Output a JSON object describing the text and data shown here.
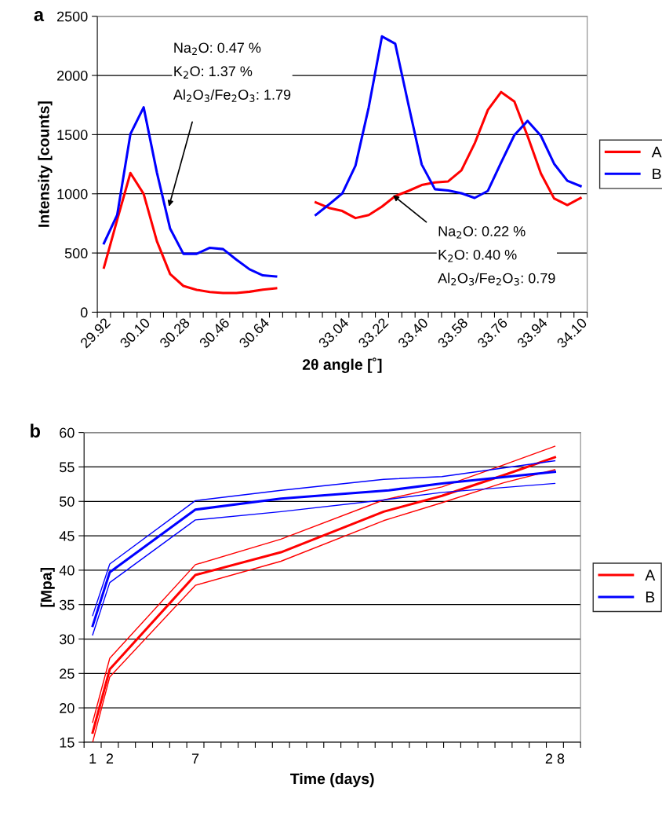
{
  "chart_data": [
    {
      "type": "line",
      "title": "a",
      "xlabel": "2θ angle [˚]",
      "ylabel": "Intensity [counts]",
      "categories": [
        "29.92",
        null,
        null,
        "30.10",
        null,
        null,
        "30.28",
        null,
        null,
        "30.46",
        null,
        null,
        "30.64",
        null,
        null,
        null,
        null,
        null,
        "33.04",
        null,
        null,
        "33.22",
        null,
        null,
        "33.40",
        null,
        null,
        "33.58",
        null,
        null,
        "33.76",
        null,
        null,
        "33.94",
        null,
        null,
        "34.10"
      ],
      "series": [
        {
          "name": "A",
          "color": "#ff0000",
          "values": [
            377,
            780,
            1176,
            999,
            599,
            322,
            222,
            189,
            171,
            162,
            162,
            173,
            191,
            202,
            null,
            null,
            928,
            881,
            855,
            795,
            821,
            892,
            981,
            1025,
            1074,
            1096,
            1105,
            1198,
            1425,
            1709,
            1860,
            1780,
            1487,
            1172,
            961,
            905,
            965
          ]
        },
        {
          "name": "B",
          "color": "#0000ff",
          "values": [
            582,
            821,
            1505,
            1731,
            1180,
            706,
            493,
            493,
            544,
            533,
            444,
            362,
            311,
            302,
            null,
            null,
            821,
            910,
            1003,
            1238,
            1731,
            2330,
            2268,
            1753,
            1248,
            1039,
            1028,
            1005,
            965,
            1025,
            1265,
            1496,
            1616,
            1491,
            1254,
            1110,
            1065
          ]
        }
      ],
      "ylim": [
        0,
        2500
      ],
      "yticks": [
        0,
        500,
        1000,
        1500,
        2000,
        2500
      ],
      "grid": "y",
      "legend": "right",
      "annotations": [
        "Na$_{2}$O: 0.47 %\nK$_{2}$O: 1.37 %\nAl$_{2}$O$_{3}$/Fe$_{2}$O$_{3}$: 1.79",
        "Na$_{2}$O: 0.22 %\nK$_{2}$O: 0.40 %\nAl$_{2}$O$_{3}$/Fe$_{2}$O$_{3}$: 0.79"
      ]
    },
    {
      "type": "line",
      "title": "b",
      "xlabel": "Time (days)",
      "ylabel": "[Mpa]",
      "xlim": [
        0.5,
        29.5
      ],
      "xticks": [
        {
          "value": 1,
          "label": "1"
        },
        {
          "value": 2,
          "label": "2"
        },
        {
          "value": 7,
          "label": "7"
        },
        {
          "value": 28,
          "label": "2 8"
        }
      ],
      "ylim": [
        15,
        60
      ],
      "yticks": [
        15,
        20,
        25,
        30,
        35,
        40,
        45,
        50,
        55,
        60
      ],
      "grid": "y",
      "legend": "right",
      "series": [
        {
          "name": "A",
          "color": "#ff0000",
          "x": [
            1,
            2,
            7,
            12,
            18,
            21.4,
            25,
            28
          ],
          "values": [
            16.4,
            25.6,
            39.3,
            42.6,
            48.5,
            50.8,
            53.8,
            56.4
          ]
        },
        {
          "color": "#ff0000",
          "x": [
            1,
            2,
            7,
            12,
            18,
            21.4,
            25,
            28
          ],
          "values": [
            17.9,
            27.2,
            40.8,
            44.5,
            50.2,
            52.1,
            55.3,
            58.0
          ]
        },
        {
          "color": "#ff0000",
          "x": [
            1,
            2,
            7,
            12,
            18,
            21.4,
            25,
            28
          ],
          "values": [
            15.0,
            24.5,
            37.8,
            41.3,
            47.2,
            49.8,
            52.7,
            54.6
          ]
        },
        {
          "name": "B",
          "color": "#0000ff",
          "x": [
            1,
            2,
            7,
            12,
            18.3,
            21.4,
            28
          ],
          "values": [
            31.9,
            39.7,
            48.8,
            50.4,
            51.6,
            52.6,
            54.3
          ]
        },
        {
          "color": "#0000ff",
          "x": [
            1,
            2,
            7,
            12,
            18,
            21.4,
            28
          ],
          "values": [
            33.4,
            40.9,
            50.1,
            51.6,
            53.2,
            53.6,
            55.9
          ]
        },
        {
          "color": "#0000ff",
          "x": [
            1,
            2,
            7,
            12,
            18,
            21.4,
            28
          ],
          "values": [
            30.6,
            38.2,
            47.3,
            48.5,
            50.2,
            51.3,
            52.6
          ]
        }
      ]
    }
  ]
}
